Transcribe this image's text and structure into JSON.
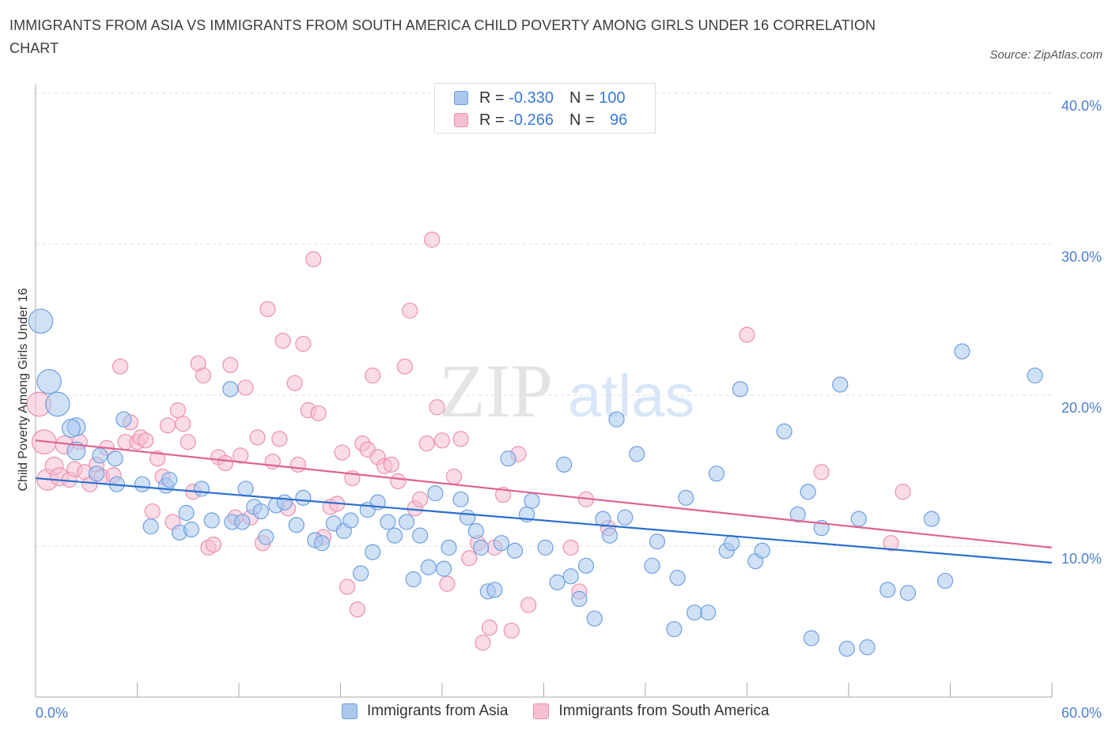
{
  "header": {
    "title": "IMMIGRANTS FROM ASIA VS IMMIGRANTS FROM SOUTH AMERICA CHILD POVERTY AMONG GIRLS UNDER 16 CORRELATION CHART",
    "source": "Source: ZipAtlas.com"
  },
  "watermark": {
    "zip": "ZIP",
    "atlas": "atlas"
  },
  "legend": {
    "asia": {
      "r_label": "R =",
      "r_value": "-0.330",
      "n_label": "N =",
      "n_value": "100"
    },
    "south_america": {
      "r_label": "R =",
      "r_value": "-0.266",
      "n_label": "N =",
      "n_value": "96"
    }
  },
  "bottom_legend": {
    "asia": "Immigrants from Asia",
    "south_america": "Immigrants from South America"
  },
  "colors": {
    "asia_fill": "#aac8ee",
    "asia_stroke": "#6e9fe0",
    "asia_line": "#2a6fd0",
    "sa_fill": "#f6bfd2",
    "sa_stroke": "#ec8fb0",
    "sa_line": "#e0628e",
    "tick": "#4a7fcf",
    "grid": "#dddddd"
  },
  "chart_data": {
    "type": "scatter",
    "title": "IMMIGRANTS FROM ASIA VS IMMIGRANTS FROM SOUTH AMERICA CHILD POVERTY AMONG GIRLS UNDER 16 CORRELATION CHART",
    "xlabel": "",
    "ylabel": "Child Poverty Among Girls Under 16",
    "xlim": [
      0,
      60
    ],
    "ylim": [
      0,
      40
    ],
    "x_tick_labels": [
      "0.0%",
      "60.0%"
    ],
    "y_ticks": [
      10,
      20,
      30,
      40
    ],
    "y_tick_labels": [
      "10.0%",
      "20.0%",
      "30.0%",
      "40.0%"
    ],
    "grid": true,
    "legend_position": "top-center",
    "series": [
      {
        "name": "Immigrants from Asia",
        "color": "#aac8ee",
        "trend": {
          "x": [
            0,
            60
          ],
          "y": [
            14.5,
            8.9
          ]
        },
        "points": [
          [
            0.3,
            24.9,
            1.6
          ],
          [
            0.8,
            20.9,
            1.6
          ],
          [
            1.3,
            19.4,
            1.6
          ],
          [
            2.4,
            17.9,
            1.2
          ],
          [
            2.4,
            16.3,
            1.2
          ],
          [
            2.1,
            17.8,
            1.2
          ],
          [
            3.8,
            16.0,
            1.0
          ],
          [
            5.2,
            18.4,
            1.0
          ],
          [
            3.6,
            14.8,
            1.0
          ],
          [
            4.7,
            15.8,
            1.0
          ],
          [
            4.8,
            14.1,
            1.0
          ],
          [
            6.3,
            14.1,
            1.0
          ],
          [
            7.7,
            14.0,
            1.0
          ],
          [
            7.9,
            14.4,
            1.0
          ],
          [
            6.8,
            11.3,
            1.0
          ],
          [
            8.5,
            10.9,
            1.0
          ],
          [
            8.9,
            12.2,
            1.0
          ],
          [
            9.2,
            11.1,
            1.0
          ],
          [
            9.8,
            13.8,
            1.0
          ],
          [
            10.4,
            11.7,
            1.0
          ],
          [
            11.5,
            20.4,
            1.0
          ],
          [
            11.6,
            11.6,
            1.0
          ],
          [
            12.2,
            11.6,
            1.0
          ],
          [
            12.4,
            13.8,
            1.0
          ],
          [
            12.9,
            12.6,
            1.0
          ],
          [
            13.3,
            12.3,
            1.0
          ],
          [
            13.6,
            10.6,
            1.0
          ],
          [
            14.2,
            12.7,
            1.0
          ],
          [
            14.7,
            12.9,
            1.0
          ],
          [
            15.4,
            11.4,
            1.0
          ],
          [
            15.8,
            13.2,
            1.0
          ],
          [
            16.5,
            10.4,
            1.0
          ],
          [
            16.9,
            10.2,
            1.0
          ],
          [
            17.6,
            11.5,
            1.0
          ],
          [
            18.2,
            11.0,
            1.0
          ],
          [
            18.6,
            11.7,
            1.0
          ],
          [
            19.2,
            8.2,
            1.0
          ],
          [
            19.6,
            12.4,
            1.0
          ],
          [
            19.9,
            9.6,
            1.0
          ],
          [
            20.2,
            12.9,
            1.0
          ],
          [
            20.8,
            11.6,
            1.0
          ],
          [
            21.2,
            10.7,
            1.0
          ],
          [
            21.9,
            11.6,
            1.0
          ],
          [
            22.3,
            7.8,
            1.0
          ],
          [
            22.7,
            10.7,
            1.0
          ],
          [
            23.2,
            8.6,
            1.0
          ],
          [
            23.6,
            13.5,
            1.0
          ],
          [
            24.1,
            8.5,
            1.0
          ],
          [
            24.4,
            9.9,
            1.0
          ],
          [
            25.1,
            13.1,
            1.0
          ],
          [
            25.5,
            11.9,
            1.0
          ],
          [
            26.0,
            11.0,
            1.0
          ],
          [
            26.3,
            9.9,
            1.0
          ],
          [
            26.7,
            7.0,
            1.0
          ],
          [
            27.1,
            7.1,
            1.0
          ],
          [
            27.5,
            10.2,
            1.0
          ],
          [
            27.9,
            15.8,
            1.0
          ],
          [
            28.3,
            9.7,
            1.0
          ],
          [
            29.0,
            12.1,
            1.0
          ],
          [
            29.3,
            13.0,
            1.0
          ],
          [
            30.1,
            9.9,
            1.0
          ],
          [
            30.8,
            7.6,
            1.0
          ],
          [
            31.2,
            15.4,
            1.0
          ],
          [
            31.6,
            8.0,
            1.0
          ],
          [
            32.1,
            6.5,
            1.0
          ],
          [
            32.5,
            8.7,
            1.0
          ],
          [
            33.0,
            5.2,
            1.0
          ],
          [
            33.5,
            11.8,
            1.0
          ],
          [
            33.9,
            10.7,
            1.0
          ],
          [
            34.3,
            18.4,
            1.0
          ],
          [
            34.8,
            11.9,
            1.0
          ],
          [
            35.5,
            16.1,
            1.0
          ],
          [
            36.4,
            8.7,
            1.0
          ],
          [
            36.7,
            10.3,
            1.0
          ],
          [
            37.7,
            4.5,
            1.0
          ],
          [
            37.9,
            7.9,
            1.0
          ],
          [
            38.4,
            13.2,
            1.0
          ],
          [
            38.9,
            5.6,
            1.0
          ],
          [
            39.7,
            5.6,
            1.0
          ],
          [
            40.2,
            14.8,
            1.0
          ],
          [
            40.8,
            9.7,
            1.0
          ],
          [
            41.1,
            10.2,
            1.0
          ],
          [
            41.6,
            20.4,
            1.0
          ],
          [
            42.5,
            9.0,
            1.0
          ],
          [
            42.9,
            9.7,
            1.0
          ],
          [
            44.2,
            17.6,
            1.0
          ],
          [
            45.0,
            12.1,
            1.0
          ],
          [
            45.6,
            13.6,
            1.0
          ],
          [
            45.8,
            3.9,
            1.0
          ],
          [
            46.4,
            11.2,
            1.0
          ],
          [
            47.5,
            20.7,
            1.0
          ],
          [
            47.9,
            3.2,
            1.0
          ],
          [
            48.6,
            11.8,
            1.0
          ],
          [
            49.1,
            3.3,
            1.0
          ],
          [
            50.3,
            7.1,
            1.0
          ],
          [
            51.5,
            6.9,
            1.0
          ],
          [
            52.9,
            11.8,
            1.0
          ],
          [
            53.7,
            7.7,
            1.0
          ],
          [
            54.7,
            22.9,
            1.0
          ],
          [
            59.0,
            21.3,
            1.0
          ]
        ]
      },
      {
        "name": "Immigrants from South America",
        "color": "#f6bfd2",
        "trend": {
          "x": [
            0,
            60
          ],
          "y": [
            17.0,
            9.9
          ]
        },
        "points": [
          [
            0.2,
            19.4,
            1.6
          ],
          [
            0.5,
            16.9,
            1.6
          ],
          [
            0.7,
            14.4,
            1.4
          ],
          [
            1.1,
            15.3,
            1.2
          ],
          [
            1.4,
            14.6,
            1.2
          ],
          [
            1.7,
            16.7,
            1.2
          ],
          [
            2.0,
            14.4,
            1.0
          ],
          [
            2.3,
            15.1,
            1.0
          ],
          [
            2.6,
            16.9,
            1.0
          ],
          [
            2.9,
            14.9,
            1.0
          ],
          [
            3.2,
            14.1,
            1.0
          ],
          [
            3.6,
            15.4,
            1.0
          ],
          [
            3.9,
            14.6,
            1.0
          ],
          [
            4.2,
            16.5,
            1.0
          ],
          [
            4.6,
            14.7,
            1.0
          ],
          [
            5.0,
            21.9,
            1.0
          ],
          [
            5.3,
            16.9,
            1.0
          ],
          [
            5.6,
            18.2,
            1.0
          ],
          [
            6.0,
            16.9,
            1.0
          ],
          [
            6.2,
            17.2,
            1.0
          ],
          [
            6.5,
            17.0,
            1.0
          ],
          [
            6.9,
            12.3,
            1.0
          ],
          [
            7.2,
            15.8,
            1.0
          ],
          [
            7.5,
            14.6,
            1.0
          ],
          [
            7.8,
            18.0,
            1.0
          ],
          [
            8.1,
            11.6,
            1.0
          ],
          [
            8.4,
            19.0,
            1.0
          ],
          [
            8.7,
            18.1,
            1.0
          ],
          [
            9.0,
            16.9,
            1.0
          ],
          [
            9.3,
            13.6,
            1.0
          ],
          [
            9.6,
            22.1,
            1.0
          ],
          [
            9.9,
            21.3,
            1.0
          ],
          [
            10.2,
            9.9,
            1.0
          ],
          [
            10.5,
            10.1,
            1.0
          ],
          [
            10.8,
            15.9,
            1.0
          ],
          [
            11.2,
            15.5,
            1.0
          ],
          [
            11.5,
            22.0,
            1.0
          ],
          [
            11.8,
            11.9,
            1.0
          ],
          [
            12.1,
            16.0,
            1.0
          ],
          [
            12.4,
            20.5,
            1.0
          ],
          [
            12.7,
            11.9,
            1.0
          ],
          [
            13.1,
            17.2,
            1.0
          ],
          [
            13.4,
            10.2,
            1.0
          ],
          [
            13.7,
            25.7,
            1.0
          ],
          [
            14.0,
            15.6,
            1.0
          ],
          [
            14.4,
            17.1,
            1.0
          ],
          [
            14.6,
            23.6,
            1.0
          ],
          [
            14.9,
            12.5,
            1.0
          ],
          [
            15.3,
            20.8,
            1.0
          ],
          [
            15.5,
            15.4,
            1.0
          ],
          [
            15.8,
            23.4,
            1.0
          ],
          [
            16.1,
            19.0,
            1.0
          ],
          [
            16.4,
            29.0,
            1.0
          ],
          [
            16.7,
            18.8,
            1.0
          ],
          [
            17.0,
            10.6,
            1.0
          ],
          [
            17.4,
            12.6,
            1.0
          ],
          [
            17.8,
            12.8,
            1.0
          ],
          [
            18.1,
            16.2,
            1.0
          ],
          [
            18.4,
            7.3,
            1.0
          ],
          [
            18.7,
            14.5,
            1.0
          ],
          [
            19.0,
            5.8,
            1.0
          ],
          [
            19.3,
            16.8,
            1.0
          ],
          [
            19.6,
            16.4,
            1.0
          ],
          [
            19.9,
            21.3,
            1.0
          ],
          [
            20.2,
            15.9,
            1.0
          ],
          [
            20.6,
            15.3,
            1.0
          ],
          [
            21.0,
            15.4,
            1.0
          ],
          [
            21.4,
            14.3,
            1.0
          ],
          [
            21.8,
            21.9,
            1.0
          ],
          [
            22.1,
            25.6,
            1.0
          ],
          [
            22.4,
            12.5,
            1.0
          ],
          [
            22.7,
            13.1,
            1.0
          ],
          [
            23.1,
            16.8,
            1.0
          ],
          [
            23.4,
            30.3,
            1.0
          ],
          [
            23.7,
            19.2,
            1.0
          ],
          [
            24.0,
            17.0,
            1.0
          ],
          [
            24.3,
            7.5,
            1.0
          ],
          [
            24.7,
            14.6,
            1.0
          ],
          [
            25.1,
            17.1,
            1.0
          ],
          [
            25.6,
            9.2,
            1.0
          ],
          [
            26.1,
            10.2,
            1.0
          ],
          [
            26.4,
            3.6,
            1.0
          ],
          [
            26.8,
            4.6,
            1.0
          ],
          [
            27.1,
            9.9,
            1.0
          ],
          [
            27.6,
            13.4,
            1.0
          ],
          [
            28.1,
            4.4,
            1.0
          ],
          [
            28.5,
            16.1,
            1.0
          ],
          [
            29.1,
            6.1,
            1.0
          ],
          [
            31.6,
            9.9,
            1.0
          ],
          [
            32.1,
            7.0,
            1.0
          ],
          [
            32.5,
            13.1,
            1.0
          ],
          [
            33.8,
            11.2,
            1.0
          ],
          [
            42.0,
            24.0,
            1.0
          ],
          [
            46.4,
            14.9,
            1.0
          ],
          [
            50.5,
            10.2,
            1.0
          ],
          [
            51.2,
            13.6,
            1.0
          ]
        ]
      }
    ]
  }
}
